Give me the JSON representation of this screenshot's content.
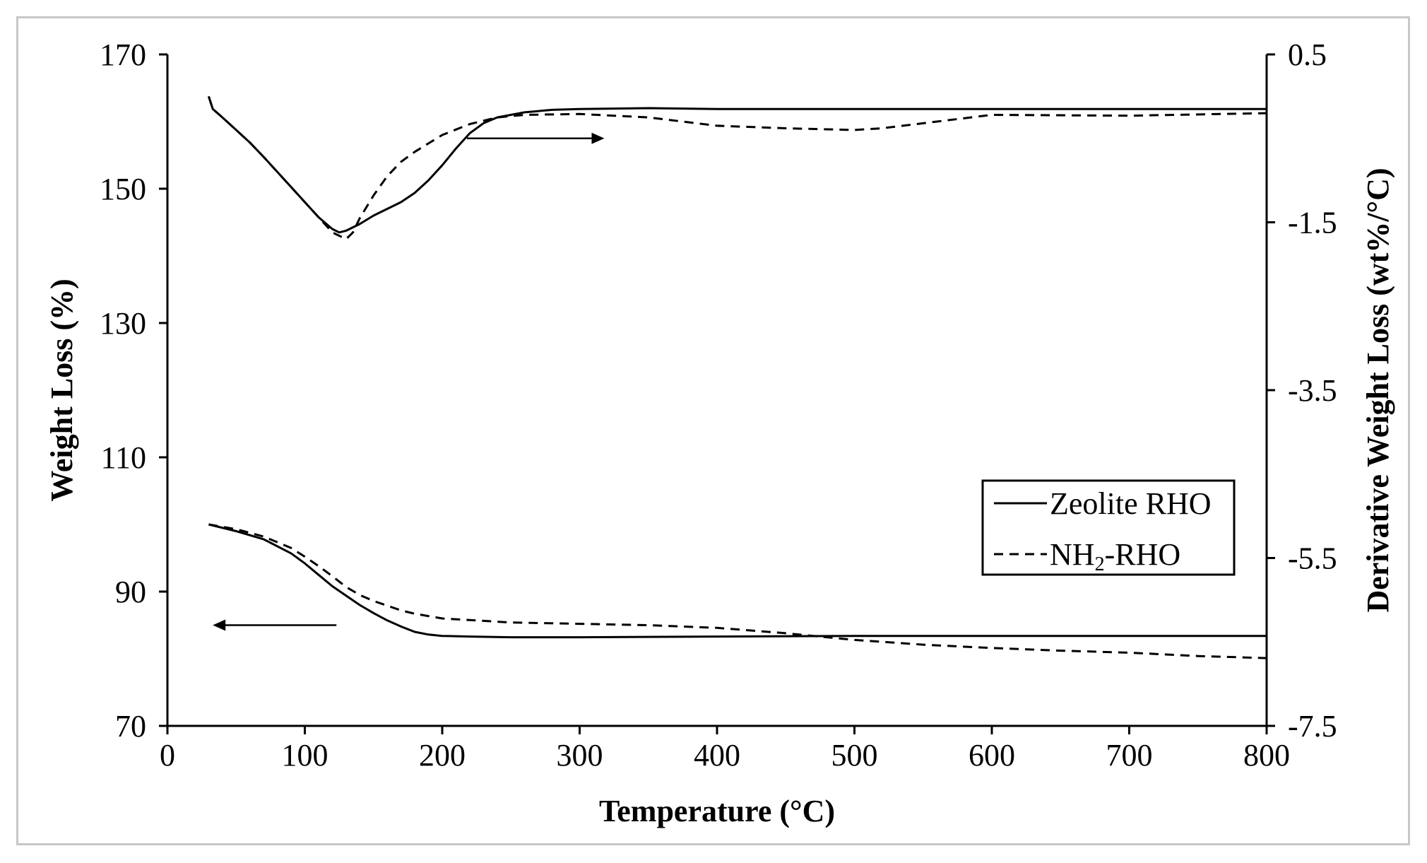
{
  "chart_data": {
    "type": "line",
    "title": "",
    "xlabel": "Temperature (°C)",
    "ylabel": "Weight Loss (%)",
    "y2label": "Derivative Weight Loss (wt%/°C)",
    "xlim": [
      0,
      800
    ],
    "ylim": [
      70,
      170
    ],
    "y2lim": [
      -7.5,
      0.5
    ],
    "xticks": [
      0,
      100,
      200,
      300,
      400,
      500,
      600,
      700,
      800
    ],
    "yticks": [
      70,
      90,
      110,
      130,
      150,
      170
    ],
    "y2ticks": [
      -7.5,
      -5.5,
      -3.5,
      -1.5,
      0.5
    ],
    "grid": false,
    "legend_position": "bottom-right",
    "legend": [
      {
        "label": "Zeolite RHO",
        "style": "solid"
      },
      {
        "label_main": "NH",
        "label_sub": "2",
        "label_tail": "-RHO",
        "style": "dashed"
      }
    ],
    "arrows": [
      {
        "direction": "right",
        "axis": "right",
        "x_from": 218,
        "x_to": 318,
        "y2": -0.5
      },
      {
        "direction": "left",
        "axis": "left",
        "x_from": 123,
        "x_to": 33,
        "y": 85
      }
    ],
    "series": [
      {
        "name": "Zeolite RHO TG",
        "axis": "left",
        "style": "solid",
        "color": "#000000",
        "x": [
          30,
          50,
          70,
          90,
          100,
          110,
          120,
          130,
          140,
          150,
          160,
          170,
          180,
          190,
          200,
          220,
          250,
          300,
          400,
          500,
          600,
          700,
          800
        ],
        "y": [
          100,
          99,
          97.8,
          95.7,
          94.2,
          92.5,
          90.8,
          89.4,
          88,
          86.8,
          85.7,
          84.8,
          84,
          83.6,
          83.4,
          83.3,
          83.2,
          83.2,
          83.3,
          83.4,
          83.4,
          83.4,
          83.4
        ]
      },
      {
        "name": "NH2-RHO TG",
        "axis": "left",
        "style": "dashed",
        "color": "#000000",
        "x": [
          30,
          50,
          70,
          90,
          100,
          110,
          120,
          130,
          140,
          150,
          160,
          170,
          180,
          200,
          250,
          300,
          350,
          400,
          450,
          500,
          550,
          600,
          650,
          700,
          750,
          800
        ],
        "y": [
          100,
          99.3,
          98.2,
          96.5,
          95.2,
          93.8,
          92.3,
          90.7,
          89.5,
          88.6,
          87.9,
          87.2,
          86.7,
          86,
          85.4,
          85.2,
          85,
          84.6,
          83.8,
          82.8,
          82.1,
          81.6,
          81.2,
          80.9,
          80.4,
          80.1
        ]
      },
      {
        "name": "Zeolite RHO DTG",
        "axis": "right",
        "style": "solid",
        "color": "#000000",
        "x": [
          30,
          33,
          40,
          50,
          60,
          70,
          80,
          90,
          100,
          110,
          120,
          125,
          130,
          140,
          150,
          160,
          170,
          180,
          190,
          200,
          210,
          220,
          230,
          240,
          260,
          280,
          300,
          350,
          400,
          500,
          600,
          700,
          800
        ],
        "y": [
          0.0,
          -0.15,
          -0.25,
          -0.4,
          -0.55,
          -0.72,
          -0.9,
          -1.08,
          -1.26,
          -1.44,
          -1.58,
          -1.62,
          -1.6,
          -1.52,
          -1.42,
          -1.34,
          -1.26,
          -1.15,
          -1.0,
          -0.82,
          -0.62,
          -0.44,
          -0.32,
          -0.25,
          -0.19,
          -0.16,
          -0.15,
          -0.14,
          -0.15,
          -0.15,
          -0.15,
          -0.15,
          -0.15
        ]
      },
      {
        "name": "NH2-RHO DTG",
        "axis": "right",
        "style": "dashed",
        "color": "#000000",
        "x": [
          30,
          33,
          40,
          50,
          60,
          70,
          80,
          90,
          100,
          110,
          120,
          130,
          135,
          140,
          150,
          160,
          170,
          180,
          190,
          200,
          220,
          240,
          260,
          300,
          350,
          400,
          450,
          500,
          520,
          560,
          600,
          700,
          800
        ],
        "y": [
          0.0,
          -0.15,
          -0.25,
          -0.4,
          -0.55,
          -0.72,
          -0.9,
          -1.08,
          -1.26,
          -1.44,
          -1.62,
          -1.7,
          -1.62,
          -1.45,
          -1.18,
          -0.95,
          -0.78,
          -0.66,
          -0.56,
          -0.46,
          -0.33,
          -0.25,
          -0.22,
          -0.21,
          -0.25,
          -0.35,
          -0.38,
          -0.4,
          -0.38,
          -0.3,
          -0.22,
          -0.23,
          -0.2
        ]
      }
    ]
  }
}
